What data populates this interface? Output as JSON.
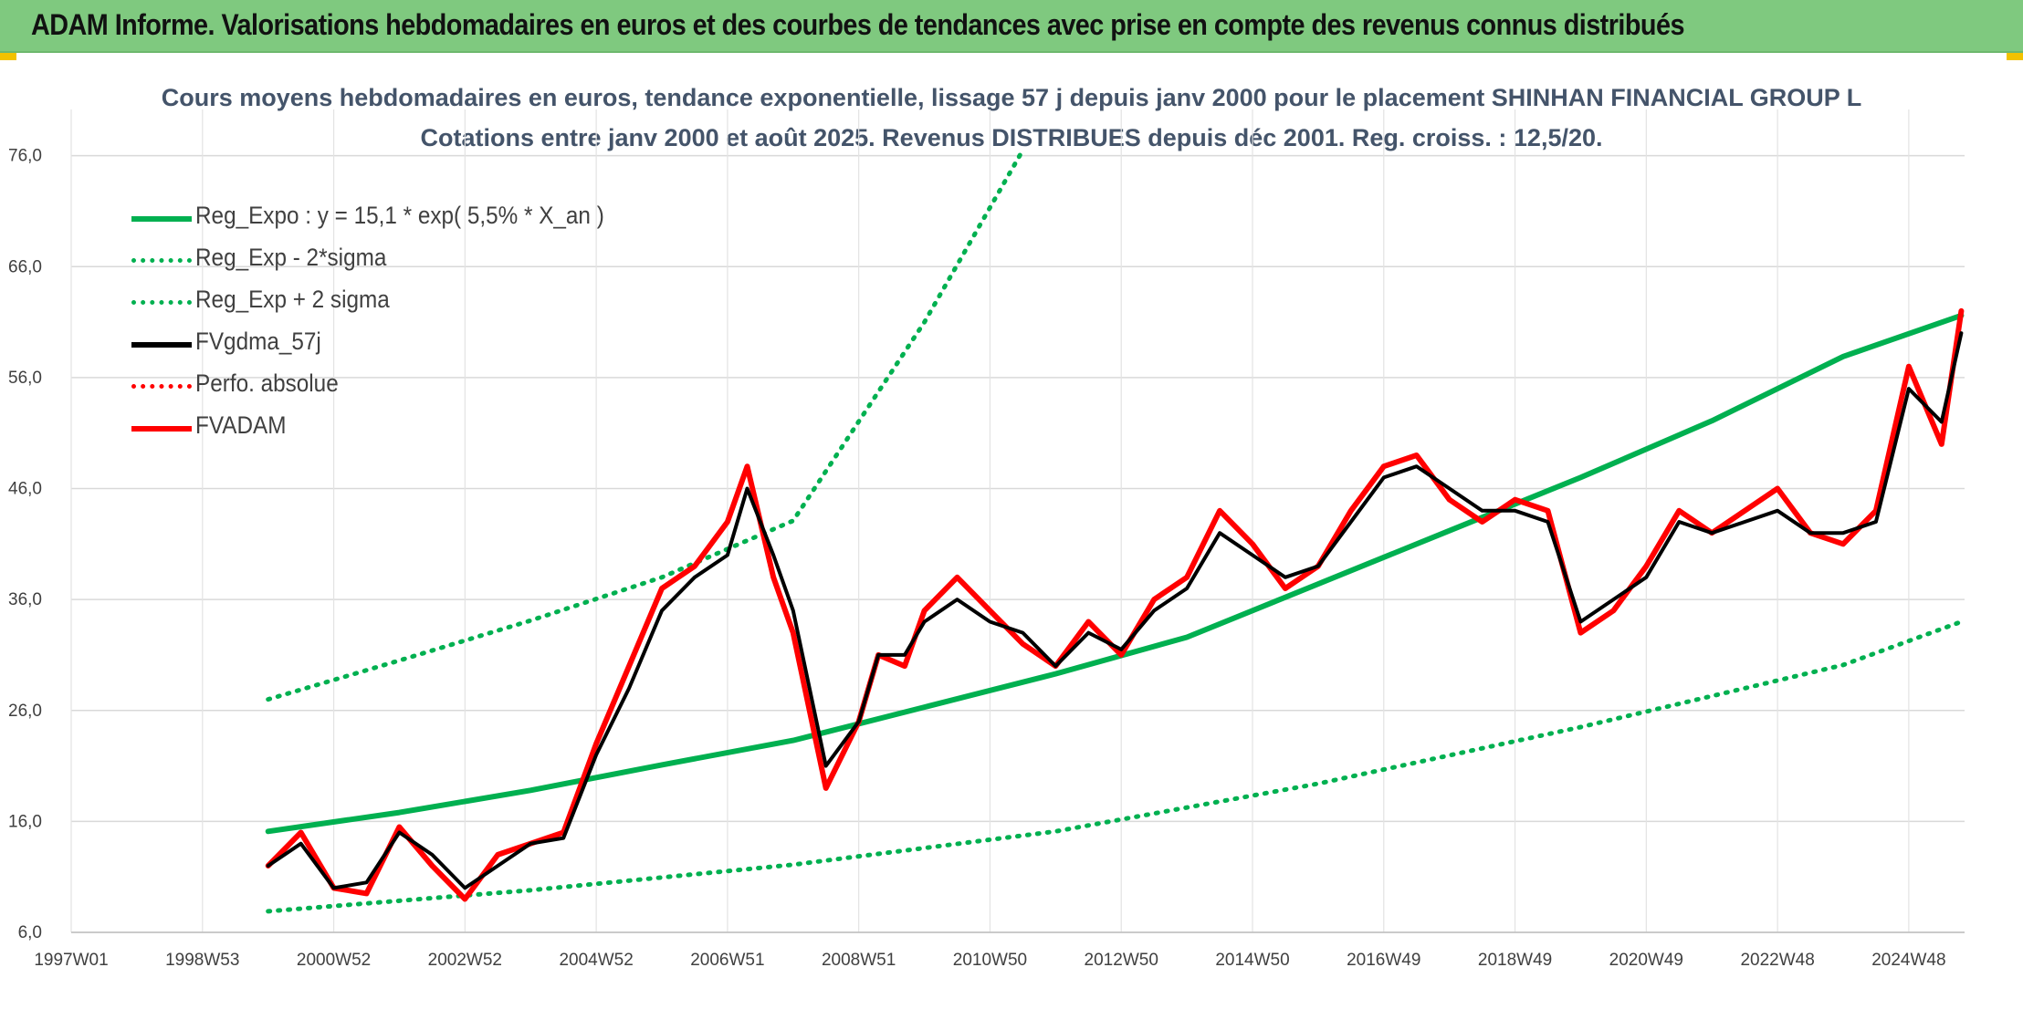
{
  "header": {
    "title": "ADAM Informe. Valorisations hebdomadaires en euros et des courbes de tendances avec prise en compte des revenus connus distribués"
  },
  "colors": {
    "header_bg": "#7fc97f",
    "regression": "#00b050",
    "fvgdma": "#000000",
    "fvadam": "#ff0000",
    "title_text": "#44546a"
  },
  "chart_data": {
    "type": "line",
    "title_line1": "Cours moyens hebdomadaires en euros, tendance exponentielle, lissage 57 j depuis janv 2000 pour le placement SHINHAN FINANCIAL GROUP L",
    "title_line2": "Cotations entre janv 2000 et août 2025. Revenus DISTRIBUES depuis déc 2001. Reg. croiss. : 12,5/20.",
    "xlabel": "",
    "ylabel": "",
    "ylim": [
      6,
      80
    ],
    "xlim": [
      1997.0,
      2025.85
    ],
    "grid": true,
    "legend_position": "top-left",
    "y_ticks": [
      "6,0",
      "16,0",
      "26,0",
      "36,0",
      "46,0",
      "56,0",
      "66,0",
      "76,0"
    ],
    "y_tick_values": [
      6,
      16,
      26,
      36,
      46,
      56,
      66,
      76
    ],
    "x_ticks": [
      "1997W01",
      "1998W53",
      "2000W52",
      "2002W52",
      "2004W52",
      "2006W51",
      "2008W51",
      "2010W50",
      "2012W50",
      "2014W50",
      "2016W49",
      "2018W49",
      "2020W49",
      "2022W48",
      "2024W48"
    ],
    "x_tick_values": [
      1997.0,
      1999.0,
      2001.0,
      2003.0,
      2005.0,
      2007.0,
      2009.0,
      2011.0,
      2013.0,
      2015.0,
      2017.0,
      2019.0,
      2021.0,
      2023.0,
      2025.0
    ],
    "regression": {
      "a": 15.1,
      "rate": 0.055,
      "x0": 2000.0,
      "sigma_upper_factor": 1.8,
      "sigma_lower_factor": 0.52
    },
    "series": [
      {
        "name": "Reg_Expo : y = 15,1 * exp( 5,5% *  X_an )",
        "color": "#00b050",
        "style": "solid",
        "x": [
          2000.0,
          2002.0,
          2004.0,
          2006.0,
          2008.0,
          2010.0,
          2012.0,
          2014.0,
          2016.0,
          2018.0,
          2020.0,
          2022.0,
          2024.0,
          2025.8
        ],
        "values": [
          15.1,
          16.8,
          18.8,
          21.1,
          23.3,
          26.3,
          29.3,
          32.6,
          37.4,
          42.2,
          47.0,
          52.1,
          57.9,
          61.6
        ]
      },
      {
        "name": "Reg_Exp - 2*sigma",
        "color": "#00b050",
        "style": "dotted",
        "x": [
          2000.0,
          2004.0,
          2008.0,
          2012.0,
          2016.0,
          2020.0,
          2024.0,
          2025.8
        ],
        "values": [
          7.9,
          9.8,
          12.1,
          15.1,
          19.4,
          24.5,
          30.1,
          34.0
        ]
      },
      {
        "name": "Reg_Exp + 2 sigma",
        "color": "#00b050",
        "style": "dotted",
        "x": [
          2000.0,
          2002.0,
          2004.0,
          2006.0,
          2008.0,
          2010.0,
          2011.5
        ],
        "values": [
          27.0,
          30.5,
          34.1,
          38.0,
          43.1,
          61.0,
          76.5
        ]
      },
      {
        "name": "FVgdma_57j",
        "color": "#000000",
        "style": "solid",
        "x": [
          2000.0,
          2000.5,
          2001.0,
          2001.5,
          2002.0,
          2002.5,
          2003.0,
          2003.5,
          2004.0,
          2004.5,
          2005.0,
          2005.5,
          2006.0,
          2006.5,
          2007.0,
          2007.3,
          2007.7,
          2008.0,
          2008.5,
          2009.0,
          2009.3,
          2009.7,
          2010.0,
          2010.5,
          2011.0,
          2011.5,
          2012.0,
          2012.5,
          2013.0,
          2013.5,
          2014.0,
          2014.5,
          2015.0,
          2015.5,
          2016.0,
          2016.5,
          2017.0,
          2017.5,
          2018.0,
          2018.5,
          2019.0,
          2019.5,
          2020.0,
          2020.5,
          2021.0,
          2021.5,
          2022.0,
          2022.5,
          2023.0,
          2023.5,
          2024.0,
          2024.5,
          2025.0,
          2025.5,
          2025.8
        ],
        "values": [
          12.0,
          14.0,
          10.0,
          10.5,
          15.0,
          13.0,
          10.0,
          12.0,
          14.0,
          14.5,
          22.0,
          28.0,
          35.0,
          38.0,
          40.0,
          46.0,
          40.0,
          35.0,
          21.0,
          25.0,
          31.0,
          31.0,
          34.0,
          36.0,
          34.0,
          33.0,
          30.0,
          33.0,
          31.5,
          35.0,
          37.0,
          42.0,
          40.0,
          38.0,
          39.0,
          43.0,
          47.0,
          48.0,
          46.0,
          44.0,
          44.0,
          43.0,
          34.0,
          36.0,
          38.0,
          43.0,
          42.0,
          43.0,
          44.0,
          42.0,
          42.0,
          43.0,
          55.0,
          52.0,
          60.0
        ]
      },
      {
        "name": "Perfo. absolue",
        "color": "#ff0000",
        "style": "dotted",
        "x": [
          2000.0,
          2000.5,
          2001.0,
          2001.5,
          2002.0,
          2002.5,
          2003.0,
          2003.5,
          2004.0,
          2004.5,
          2005.0,
          2005.5,
          2006.0,
          2006.5,
          2007.0,
          2007.3,
          2007.7,
          2008.0,
          2008.5,
          2009.0,
          2009.3,
          2009.7,
          2010.0,
          2010.5,
          2011.0,
          2011.5,
          2012.0,
          2012.5,
          2013.0,
          2013.5,
          2014.0,
          2014.5,
          2015.0,
          2015.5,
          2016.0,
          2016.5,
          2017.0,
          2017.5,
          2018.0,
          2018.5,
          2019.0,
          2019.5,
          2020.0,
          2020.5,
          2021.0,
          2021.5,
          2022.0,
          2022.5,
          2023.0,
          2023.5,
          2024.0,
          2024.5,
          2025.0,
          2025.5,
          2025.8
        ],
        "values": [
          12.0,
          15.0,
          10.0,
          9.5,
          15.5,
          12.0,
          9.0,
          13.0,
          14.0,
          15.0,
          23.0,
          30.0,
          37.0,
          39.0,
          43.0,
          48.0,
          38.0,
          33.0,
          19.0,
          25.0,
          31.0,
          30.0,
          35.0,
          38.0,
          35.0,
          32.0,
          30.0,
          34.0,
          31.0,
          36.0,
          38.0,
          44.0,
          41.0,
          37.0,
          39.0,
          44.0,
          48.0,
          49.0,
          45.0,
          43.0,
          45.0,
          44.0,
          33.0,
          35.0,
          39.0,
          44.0,
          42.0,
          44.0,
          46.0,
          42.0,
          41.0,
          44.0,
          57.0,
          50.0,
          62.0
        ]
      },
      {
        "name": "FVADAM",
        "color": "#ff0000",
        "style": "solid",
        "x": [
          2000.0,
          2000.5,
          2001.0,
          2001.5,
          2002.0,
          2002.5,
          2003.0,
          2003.5,
          2004.0,
          2004.5,
          2005.0,
          2005.5,
          2006.0,
          2006.5,
          2007.0,
          2007.3,
          2007.7,
          2008.0,
          2008.5,
          2009.0,
          2009.3,
          2009.7,
          2010.0,
          2010.5,
          2011.0,
          2011.5,
          2012.0,
          2012.5,
          2013.0,
          2013.5,
          2014.0,
          2014.5,
          2015.0,
          2015.5,
          2016.0,
          2016.5,
          2017.0,
          2017.5,
          2018.0,
          2018.5,
          2019.0,
          2019.5,
          2020.0,
          2020.5,
          2021.0,
          2021.5,
          2022.0,
          2022.5,
          2023.0,
          2023.5,
          2024.0,
          2024.5,
          2025.0,
          2025.5,
          2025.8
        ],
        "values": [
          12.0,
          15.0,
          10.0,
          9.5,
          15.5,
          12.0,
          9.0,
          13.0,
          14.0,
          15.0,
          23.0,
          30.0,
          37.0,
          39.0,
          43.0,
          48.0,
          38.0,
          33.0,
          19.0,
          25.0,
          31.0,
          30.0,
          35.0,
          38.0,
          35.0,
          32.0,
          30.0,
          34.0,
          31.0,
          36.0,
          38.0,
          44.0,
          41.0,
          37.0,
          39.0,
          44.0,
          48.0,
          49.0,
          45.0,
          43.0,
          45.0,
          44.0,
          33.0,
          35.0,
          39.0,
          44.0,
          42.0,
          44.0,
          46.0,
          42.0,
          41.0,
          44.0,
          57.0,
          50.0,
          62.0
        ]
      }
    ]
  }
}
